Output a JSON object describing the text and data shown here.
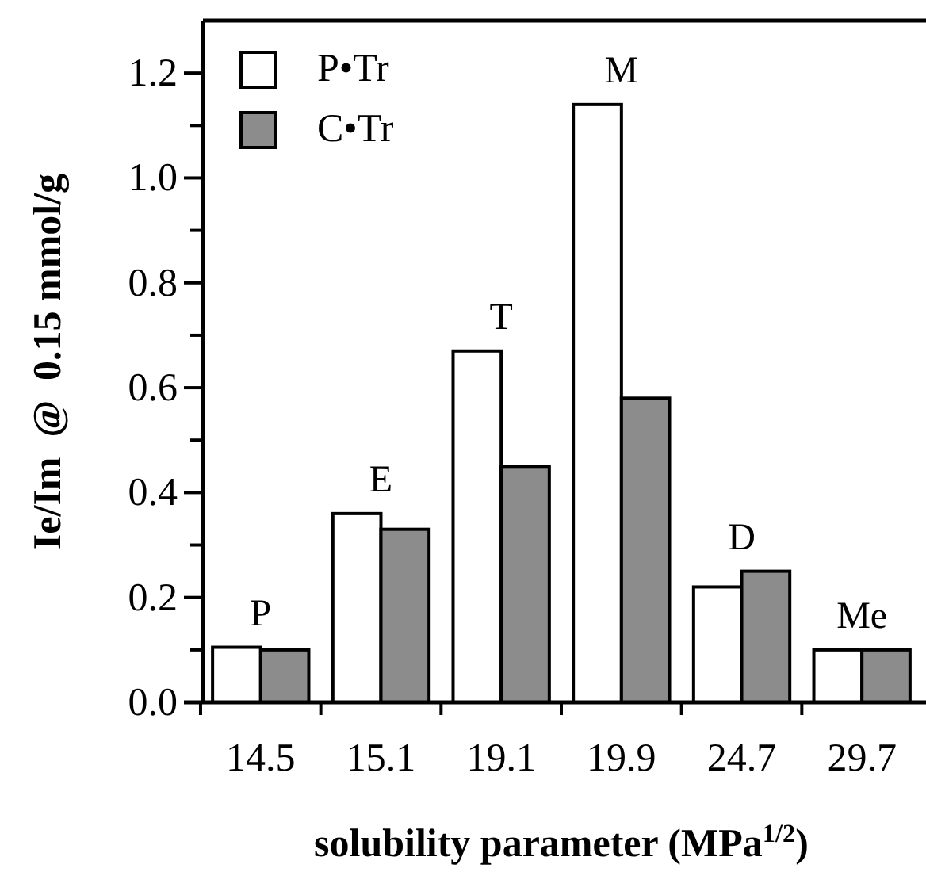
{
  "chart_data": {
    "type": "bar",
    "xlabel": "solubility parameter (MPa$^{1/2}$)",
    "ylabel": "Ie/Im  @  0.15 mmol/g",
    "categories": [
      "14.5",
      "15.1",
      "19.1",
      "19.9",
      "24.7",
      "29.7"
    ],
    "series": [
      {
        "name": "P•Tr",
        "color": "#ffffff",
        "values": [
          0.105,
          0.36,
          0.67,
          1.14,
          0.22,
          0.1
        ]
      },
      {
        "name": "C•Tr",
        "color": "#8c8c8c",
        "values": [
          0.1,
          0.33,
          0.45,
          0.58,
          0.25,
          0.1
        ]
      }
    ],
    "ylim": [
      0,
      1.3
    ],
    "yticks": [
      {
        "value": 0,
        "label": "0.0"
      },
      {
        "value": 0.1,
        "label": null
      },
      {
        "value": 0.2,
        "label": "0.2"
      },
      {
        "value": 0.3,
        "label": null
      },
      {
        "value": 0.4,
        "label": "0.4"
      },
      {
        "value": 0.5,
        "label": null
      },
      {
        "value": 0.6,
        "label": "0.6"
      },
      {
        "value": 0.7,
        "label": null
      },
      {
        "value": 0.8,
        "label": "0.8"
      },
      {
        "value": 0.9,
        "label": null
      },
      {
        "value": 1.0,
        "label": "1.0"
      },
      {
        "value": 1.1,
        "label": null
      },
      {
        "value": 1.2,
        "label": "1.2"
      }
    ],
    "annotations": [
      {
        "text": "P",
        "x": "14.5",
        "y": 0.105
      },
      {
        "text": "E",
        "x": "15.1",
        "y": 0.36
      },
      {
        "text": "T",
        "x": "19.1",
        "y": 0.67
      },
      {
        "text": "M",
        "x": "19.9",
        "y": 1.14
      },
      {
        "text": "D",
        "x": "24.7",
        "y": 0.25
      },
      {
        "text": "Me",
        "x": "29.7",
        "y": 0.1
      }
    ],
    "legend": "top left",
    "grid": false
  }
}
